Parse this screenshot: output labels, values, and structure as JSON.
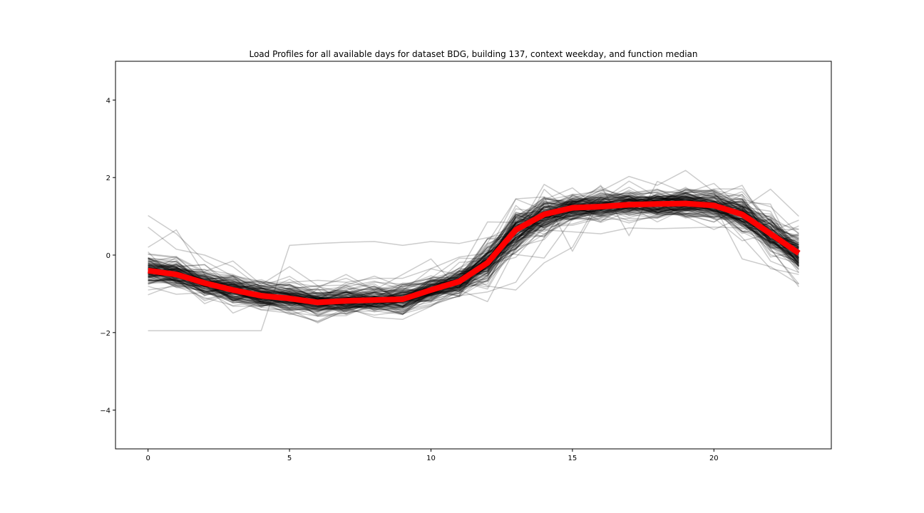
{
  "chart_data": {
    "type": "line",
    "title": "Load Profiles for all available days for dataset BDG, building 137, context weekday, and function median",
    "xlabel": "",
    "ylabel": "",
    "xlim": [
      -1.15,
      24.15
    ],
    "ylim": [
      -5,
      5
    ],
    "x_ticks": [
      0,
      5,
      10,
      15,
      20
    ],
    "y_ticks": [
      -4,
      -2,
      0,
      2,
      4
    ],
    "x_tick_labels": [
      "0",
      "5",
      "10",
      "15",
      "20"
    ],
    "y_tick_labels": [
      "−4",
      "−2",
      "0",
      "2",
      "4"
    ],
    "grid": false,
    "legend": "none",
    "x": [
      0,
      1,
      2,
      3,
      4,
      5,
      6,
      7,
      8,
      9,
      10,
      11,
      12,
      13,
      14,
      15,
      16,
      17,
      18,
      19,
      20,
      21,
      22,
      23
    ],
    "median": {
      "color": "#ff0000",
      "values": [
        -0.4,
        -0.5,
        -0.72,
        -0.9,
        -1.05,
        -1.12,
        -1.22,
        -1.18,
        -1.16,
        -1.14,
        -0.9,
        -0.68,
        -0.2,
        0.65,
        1.05,
        1.22,
        1.25,
        1.3,
        1.32,
        1.33,
        1.28,
        1.05,
        0.55,
        0.05
      ]
    },
    "profile_color": "#000000",
    "profile_opacity": 0.2,
    "outliers": [
      [
        -1.95,
        -1.95,
        -1.95,
        -1.95,
        -1.95,
        0.25,
        0.3,
        0.33,
        0.35,
        0.25,
        0.35,
        0.3,
        0.45,
        0.6,
        0.65,
        0.6,
        0.55,
        0.7,
        0.68,
        0.7,
        0.72,
        0.7,
        0.5,
        0.2
      ],
      [
        1.02,
        0.55,
        -0.15,
        -0.55,
        -0.7,
        -0.7,
        -0.65,
        -0.7,
        -0.6,
        -0.6,
        -0.35,
        -0.05,
        0.05,
        1.45,
        1.5,
        0.1,
        1.4,
        1.5,
        1.45,
        1.4,
        1.5,
        1.8,
        0.6,
        0.9
      ],
      [
        0.72,
        0.15,
        0.0,
        -0.3,
        -0.85,
        -1.0,
        -0.85,
        -0.5,
        -0.9,
        -0.5,
        -0.1,
        -0.9,
        -1.2,
        0.2,
        0.4,
        1.2,
        1.8,
        0.5,
        1.9,
        1.6,
        1.85,
        1.2,
        1.7,
        1.0
      ],
      [
        0.2,
        0.65,
        -0.5,
        -0.6,
        -0.8,
        -0.55,
        -1.0,
        -0.9,
        -0.7,
        -0.75,
        -0.6,
        -0.4,
        -0.8,
        -0.9,
        -0.2,
        0.2,
        1.5,
        1.6,
        1.7,
        1.4,
        1.3,
        -0.1,
        -0.3,
        -0.75
      ],
      [
        -0.9,
        -0.8,
        -1.1,
        -1.3,
        -1.2,
        -1.4,
        -1.75,
        -1.4,
        -1.55,
        -1.45,
        -1.3,
        -1.05,
        -0.95,
        -0.7,
        0.45,
        1.55,
        1.3,
        1.45,
        1.2,
        1.35,
        1.25,
        0.45,
        -0.35,
        -0.5
      ]
    ]
  }
}
